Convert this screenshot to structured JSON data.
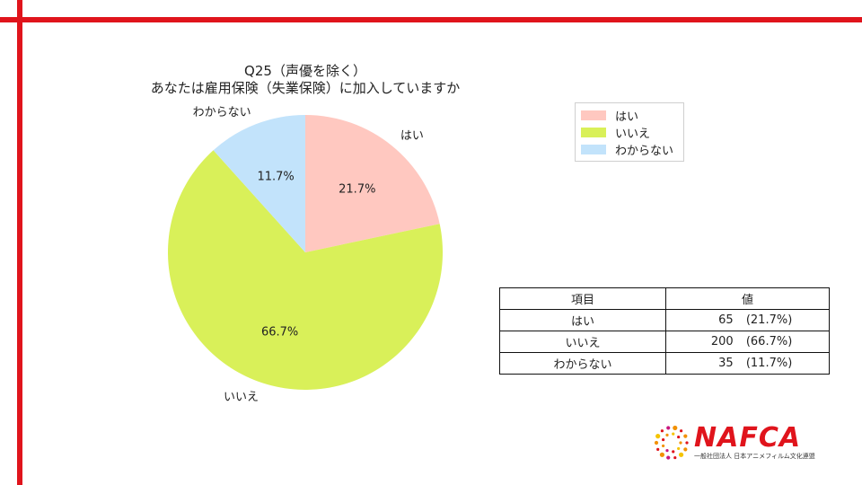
{
  "chart_data": {
    "type": "pie",
    "title": "Q25（声優を除く）\nあなたは雇用保険（失業保険）に加入していますか",
    "title_lines": [
      "Q25（声優を除く）",
      "あなたは雇用保険（失業保険）に加入していますか"
    ],
    "categories": [
      "はい",
      "いいえ",
      "わからない"
    ],
    "values": [
      65,
      200,
      35
    ],
    "percent_labels": [
      "21.7%",
      "66.7%",
      "11.7%"
    ],
    "colors": [
      "#ffc8c0",
      "#d9f059",
      "#c2e3fb"
    ],
    "start_angle_deg": 90,
    "direction": "clockwise",
    "legend_placement": "top-right"
  },
  "legend": {
    "items": [
      {
        "label": "はい",
        "color": "#ffc8c0"
      },
      {
        "label": "いいえ",
        "color": "#d9f059"
      },
      {
        "label": "わからない",
        "color": "#c2e3fb"
      }
    ]
  },
  "table": {
    "headers": [
      "項目",
      "値"
    ],
    "rows": [
      {
        "item": "はい",
        "count": "65",
        "pct": "(21.7%)"
      },
      {
        "item": "いいえ",
        "count": "200",
        "pct": "(66.7%)"
      },
      {
        "item": "わからない",
        "count": "35",
        "pct": "(11.7%)"
      }
    ]
  },
  "logo": {
    "word": "NAFCA",
    "subtitle": "一般社団法人 日本アニメフィルム文化連盟",
    "accent": "#e0141c"
  },
  "frame": {
    "accent": "#e0141c"
  }
}
